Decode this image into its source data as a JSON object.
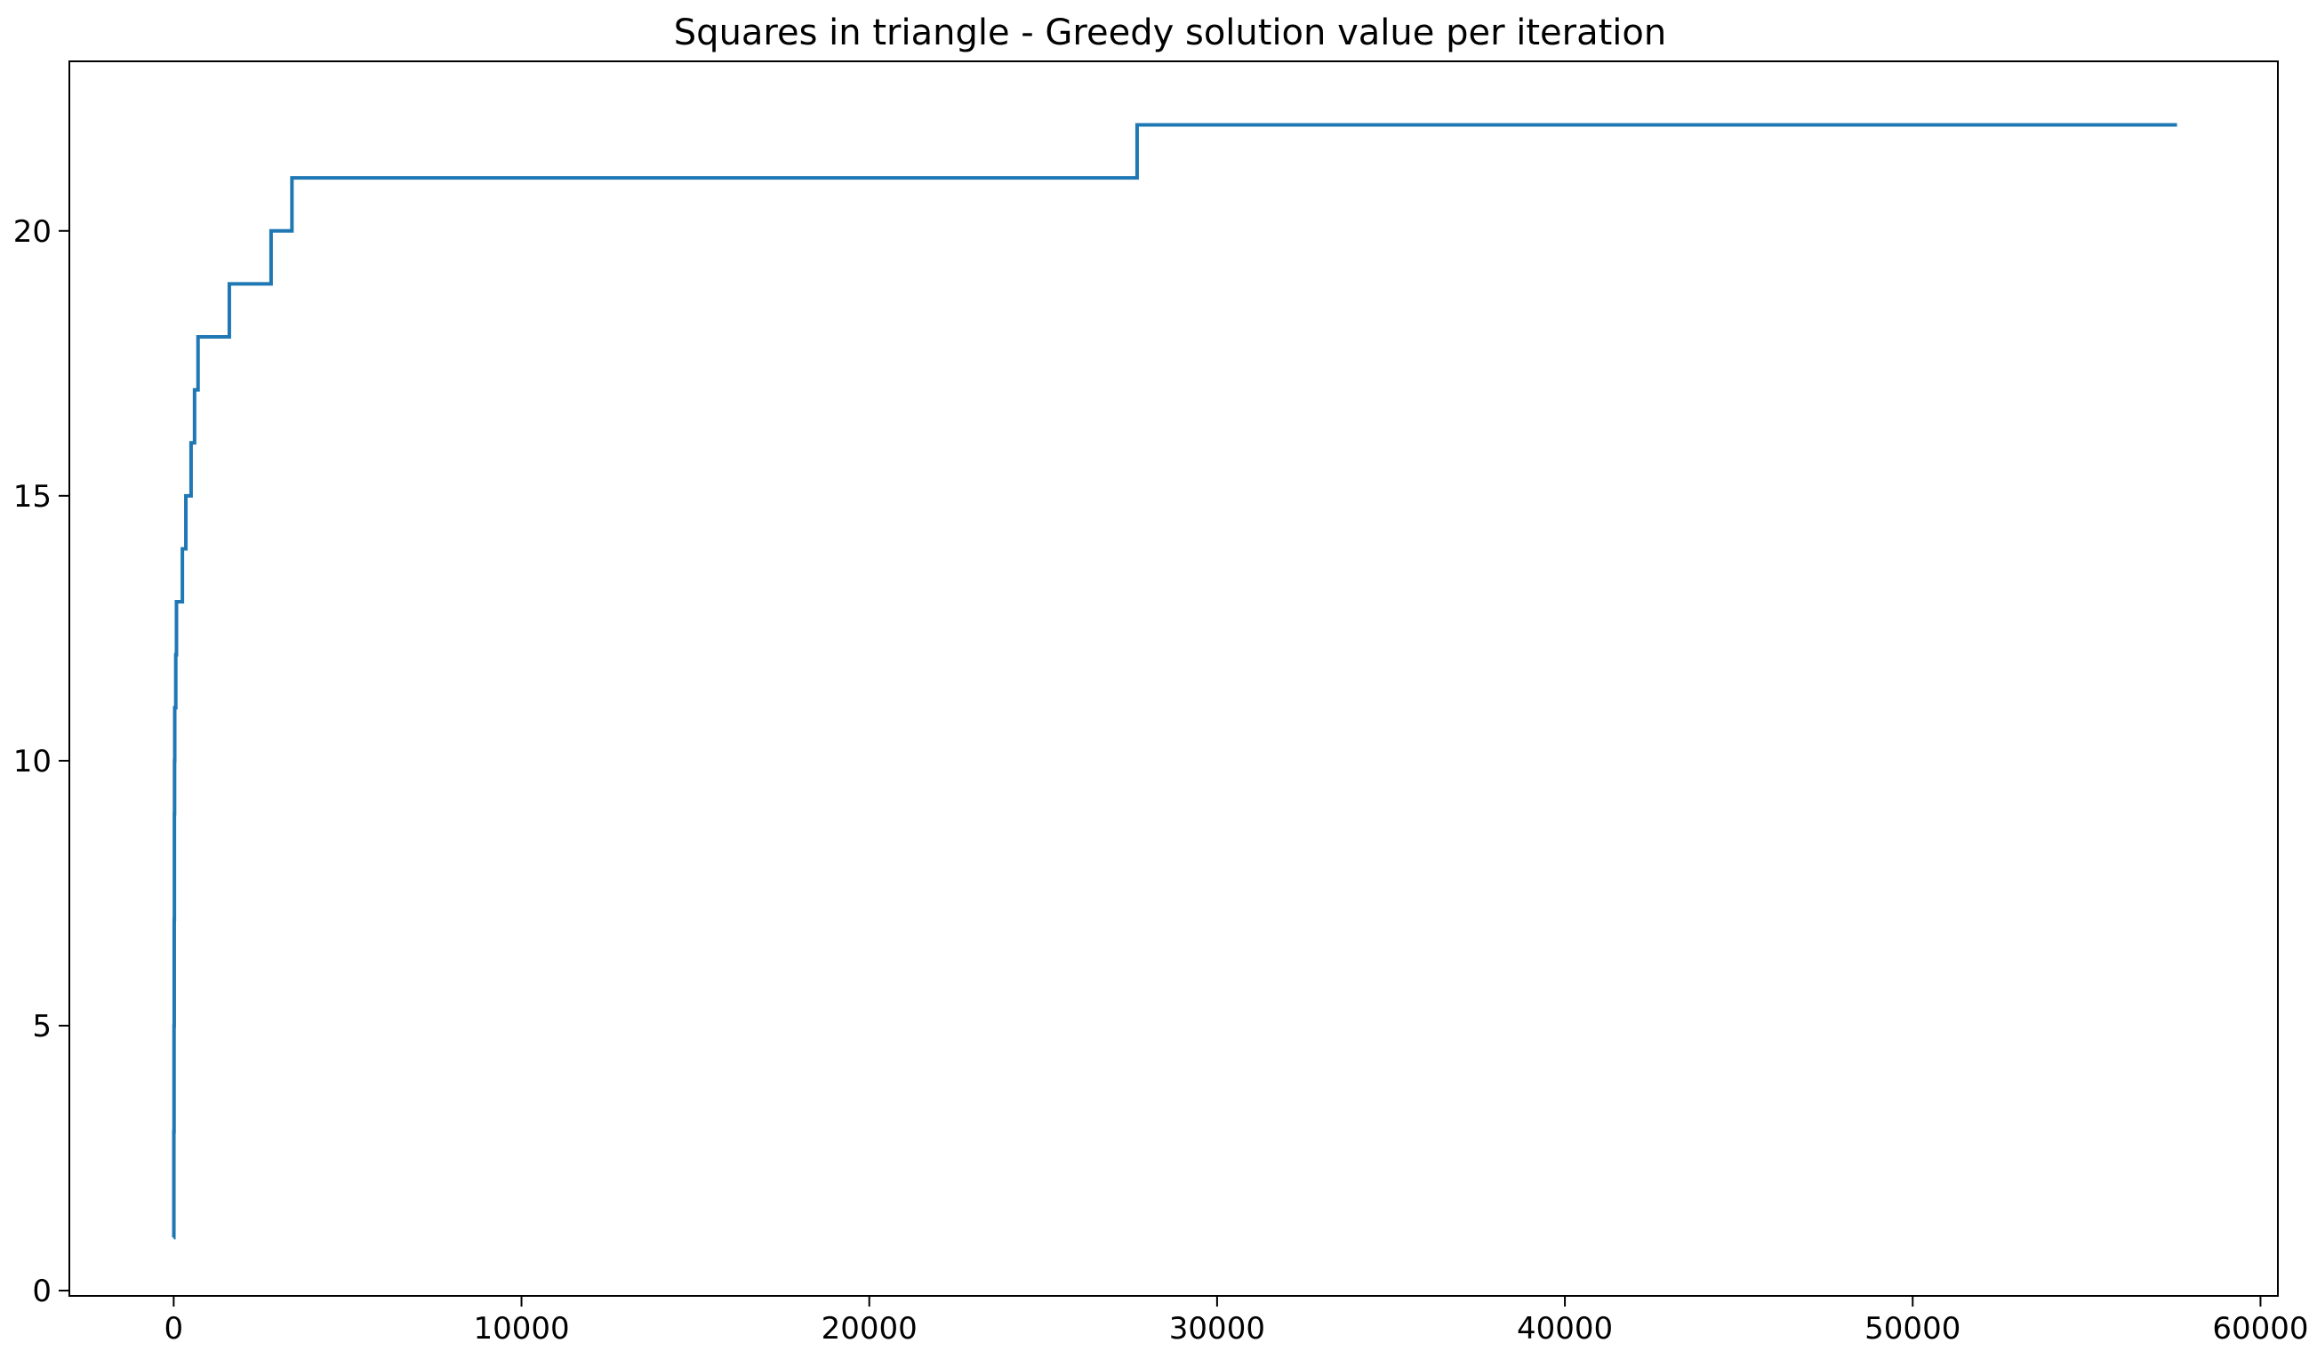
{
  "chart_data": {
    "type": "line",
    "title": "Squares in triangle - Greedy solution value per iteration",
    "xlabel": "",
    "ylabel": "",
    "xlim": [
      -3000,
      60500
    ],
    "ylim": [
      -0.1,
      23.2
    ],
    "xticks": [
      0,
      10000,
      20000,
      30000,
      40000,
      50000,
      60000
    ],
    "yticks": [
      0,
      5,
      10,
      15,
      20
    ],
    "xtick_labels": [
      "0",
      "10000",
      "20000",
      "30000",
      "40000",
      "50000",
      "60000"
    ],
    "ytick_labels": [
      "0",
      "5",
      "10",
      "15",
      "20"
    ],
    "grid": false,
    "legend": "none",
    "step": "post",
    "series": [
      {
        "color": "#1f77b4",
        "x": [
          0,
          5,
          10,
          15,
          20,
          25,
          30,
          35,
          40,
          50,
          60,
          70,
          80,
          150,
          250,
          350,
          500,
          580,
          600,
          700,
          1600,
          2800,
          3400,
          27700,
          57600
        ],
        "y": [
          1,
          3,
          5,
          7,
          9,
          10,
          11,
          11,
          11,
          11,
          12,
          12,
          13,
          13,
          14,
          15,
          16,
          16,
          17,
          18,
          19,
          20,
          21,
          22,
          22
        ]
      }
    ]
  }
}
